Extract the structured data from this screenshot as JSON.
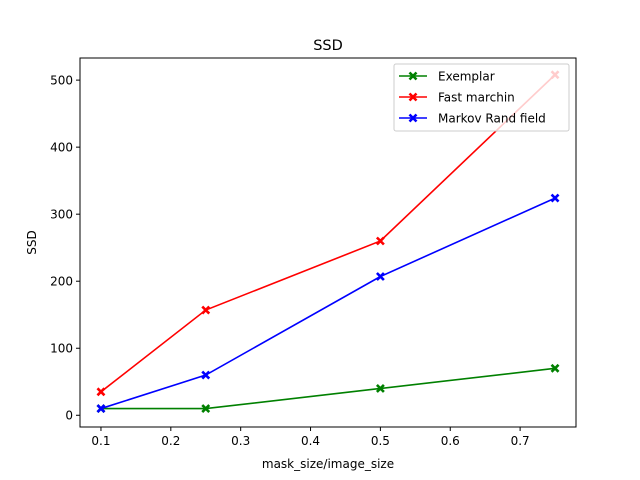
{
  "chart_data": {
    "type": "line",
    "title": "SSD",
    "xlabel": "mask_size/image_size",
    "ylabel": "SSD",
    "xlim": [
      0.07,
      0.78
    ],
    "ylim": [
      -17.5,
      533
    ],
    "xticks": [
      0.1,
      0.2,
      0.3,
      0.4,
      0.5,
      0.6,
      0.7
    ],
    "xtick_labels": [
      "0.1",
      "0.2",
      "0.3",
      "0.4",
      "0.5",
      "0.6",
      "0.7"
    ],
    "yticks": [
      0,
      100,
      200,
      300,
      400,
      500
    ],
    "ytick_labels": [
      "0",
      "100",
      "200",
      "300",
      "400",
      "500"
    ],
    "grid": false,
    "legend_position": "top-right",
    "x": [
      0.1,
      0.25,
      0.5,
      0.75
    ],
    "series": [
      {
        "name": "Exemplar",
        "color": "#008000",
        "marker": "X",
        "values": [
          10,
          10,
          40,
          70
        ]
      },
      {
        "name": "Fast marchin",
        "color": "#ff0000",
        "marker": "X",
        "values": [
          35,
          157,
          260,
          508
        ]
      },
      {
        "name": "Markov Rand field",
        "color": "#0000ff",
        "marker": "X",
        "values": [
          10,
          60,
          207,
          324
        ]
      }
    ]
  }
}
